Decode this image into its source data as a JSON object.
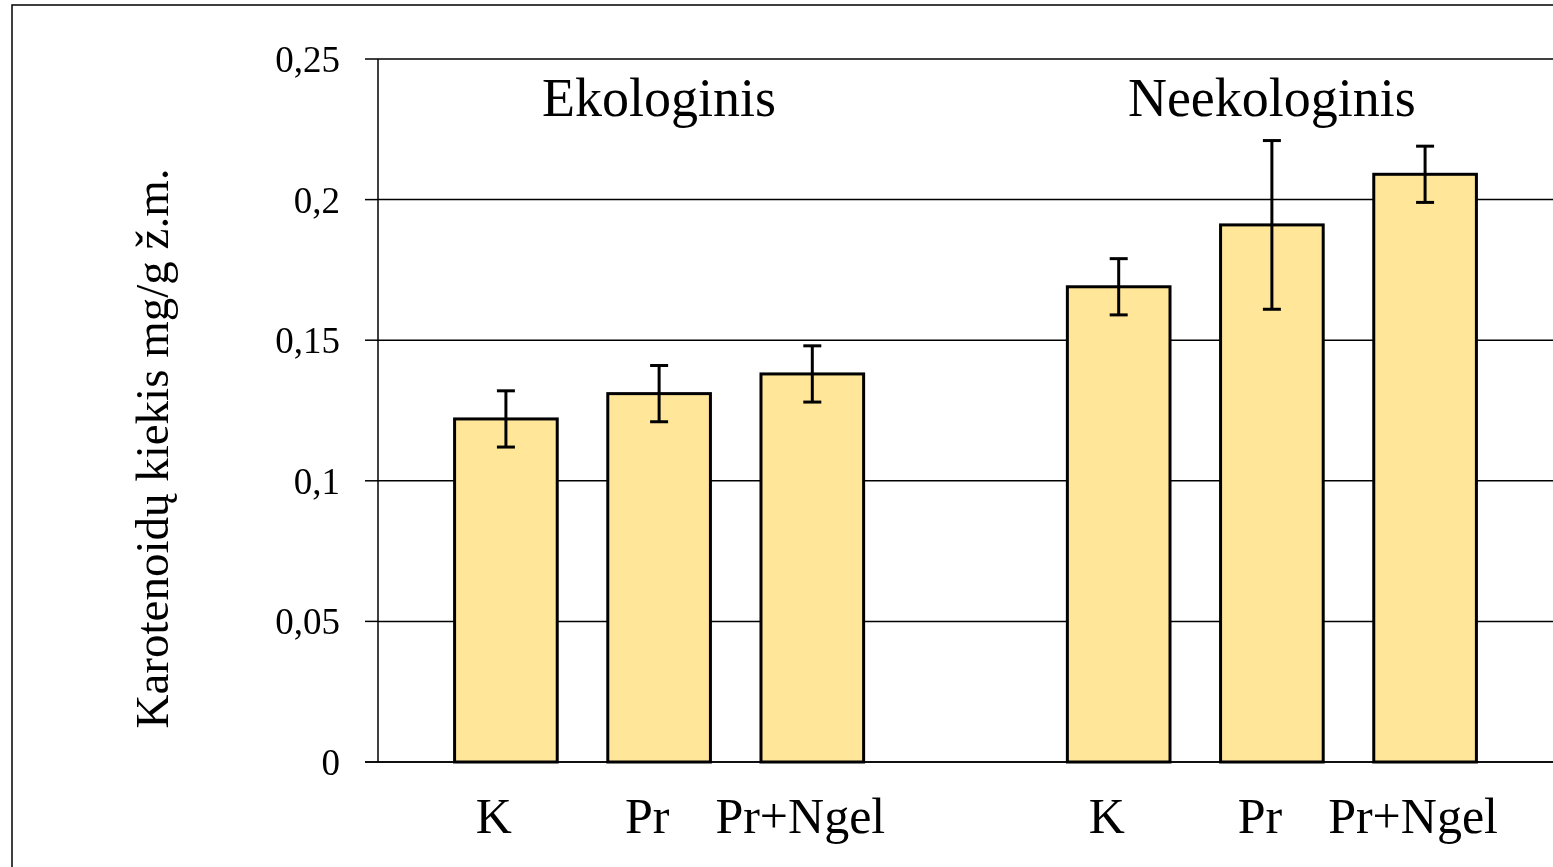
{
  "chart_data": {
    "type": "bar",
    "ylabel": "Karotenoidų  kiekis mg/g ž.m.",
    "annotations": [
      "Ekologinis",
      "Neekologinis"
    ],
    "categories": [
      "K",
      "Pr",
      "Pr+Ngel",
      null,
      "K",
      "Pr",
      "Pr+Ngel"
    ],
    "values": [
      0.122,
      0.131,
      0.138,
      null,
      0.169,
      0.191,
      0.209
    ],
    "errors": [
      0.01,
      0.01,
      0.01,
      null,
      0.01,
      0.03,
      0.01
    ],
    "color": "#ffe699",
    "ylim": [
      0,
      0.25
    ],
    "yticks": [
      0,
      {
        "value": 0.05,
        "label": "0,05"
      },
      {
        "value": 0.1,
        "label": "0,1"
      },
      {
        "value": 0.15,
        "label": "0,15"
      },
      {
        "value": 0.2,
        "label": "0,2"
      },
      {
        "value": 0.25,
        "label": "0,25"
      }
    ],
    "grid": "y"
  }
}
